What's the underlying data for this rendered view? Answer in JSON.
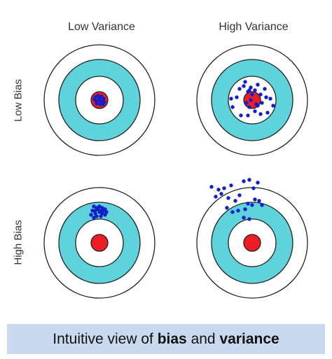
{
  "columns": [
    "Low Variance",
    "High Variance"
  ],
  "rows": [
    "Low Bias",
    "High Bias"
  ],
  "caption": {
    "part1": "Intuitive view of ",
    "bias": "bias",
    "part2": " and ",
    "variance": "variance"
  },
  "colors": {
    "ring_outline": "#222222",
    "ring_white": "#ffffff",
    "ring_cyan": "#5fd3dc",
    "bullseye": "#ee1c24",
    "dots": "#1020c8",
    "caption_bg": "#c9d9ef"
  },
  "targets": [
    {
      "name": "low-bias-low-variance",
      "row": 0,
      "col": 0
    },
    {
      "name": "low-bias-high-variance",
      "row": 0,
      "col": 1
    },
    {
      "name": "high-bias-low-variance",
      "row": 1,
      "col": 0
    },
    {
      "name": "high-bias-high-variance",
      "row": 1,
      "col": 1
    }
  ]
}
